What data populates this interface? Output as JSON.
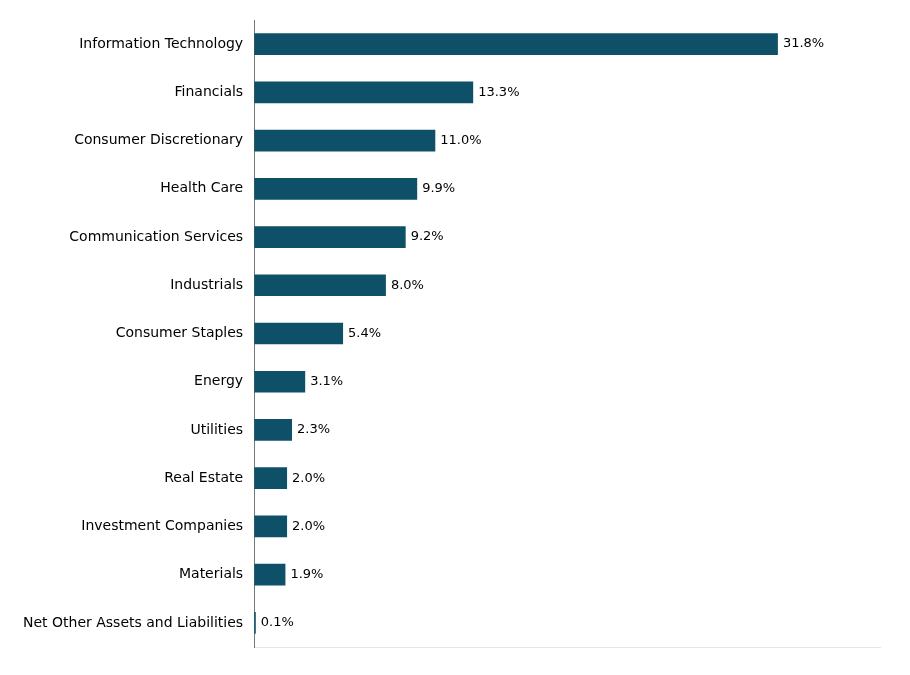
{
  "chart_data": {
    "type": "bar",
    "orientation": "horizontal",
    "categories": [
      "Net Other Assets and Liabilities",
      "Materials",
      "Investment Companies",
      "Real Estate",
      "Utilities",
      "Energy",
      "Consumer Staples",
      "Industrials",
      "Communication Services",
      "Health Care",
      "Consumer Discretionary",
      "Financials",
      "Information Technology"
    ],
    "values": [
      0.1,
      1.9,
      2.0,
      2.0,
      2.3,
      3.1,
      5.4,
      8.0,
      9.2,
      9.9,
      11.0,
      13.3,
      31.8
    ],
    "value_labels": [
      "0.1%",
      "1.9%",
      "2.0%",
      "2.0%",
      "2.3%",
      "3.1%",
      "5.4%",
      "8.0%",
      "9.2%",
      "9.9%",
      "11.0%",
      "13.3%",
      "31.8%"
    ],
    "data_labels": true,
    "color": "#0d5068",
    "xlim": [
      0,
      38
    ],
    "grid": false,
    "tick_labels": "y"
  }
}
